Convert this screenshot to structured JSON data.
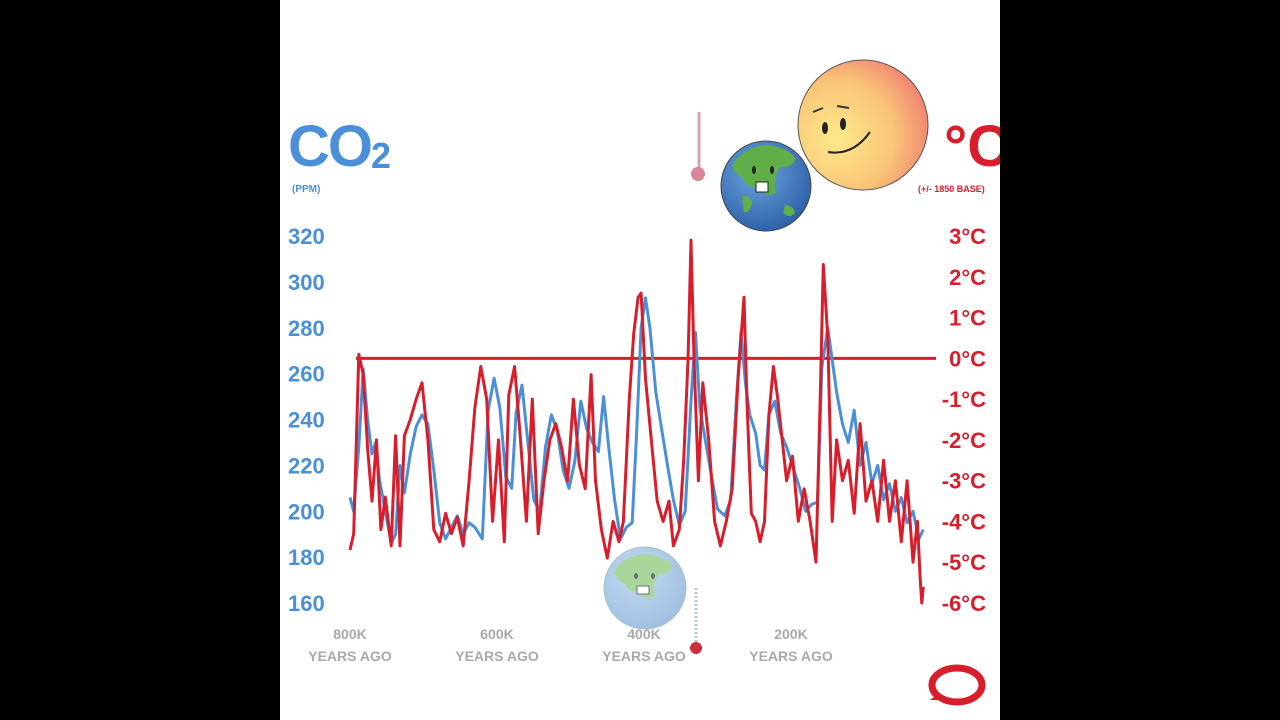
{
  "colors": {
    "co2": "#4a90d9",
    "temp": "#d81e2a",
    "background": "#ffffff",
    "frame": "#000000",
    "x_labels": "#a9a9a9"
  },
  "header": {
    "co2_title": "CO",
    "co2_sub": "2",
    "co2_unit": "(PPM)",
    "temp_title": "°C",
    "temp_unit": "(+/- 1850 BASE)"
  },
  "icons": [
    "thermometer-icon",
    "earth-icon",
    "sun-icon",
    "earth-icon",
    "thermometer-icon",
    "logo-icon"
  ],
  "chart_data": {
    "type": "line",
    "x_unit": "years ago",
    "xlim": [
      800000,
      0
    ],
    "x_ticks": [
      {
        "value": 800000,
        "line1": "800K",
        "line2": "YEARS AGO"
      },
      {
        "value": 600000,
        "line1": "600K",
        "line2": "YEARS AGO"
      },
      {
        "value": 400000,
        "line1": "400K",
        "line2": "YEARS AGO"
      },
      {
        "value": 200000,
        "line1": "200K",
        "line2": "YEARS AGO"
      }
    ],
    "y_left": {
      "label": "CO2 (PPM)",
      "ticks": [
        320,
        300,
        280,
        260,
        240,
        220,
        200,
        180,
        160
      ],
      "ylim": [
        160,
        320
      ]
    },
    "y_right": {
      "label": "°C (+/- 1850 BASE)",
      "ticks": [
        "3°C",
        "2°C",
        "1°C",
        "0°C",
        "-1°C",
        "-2°C",
        "-3°C",
        "-4°C",
        "-5°C",
        "-6°C"
      ],
      "ylim": [
        -6,
        3
      ]
    },
    "reference_line": {
      "value_celsius": 0
    },
    "series": [
      {
        "axis": "left",
        "points": [
          [
            800000,
            206
          ],
          [
            795000,
            200
          ],
          [
            788000,
            228
          ],
          [
            782000,
            262
          ],
          [
            776000,
            240
          ],
          [
            770000,
            225
          ],
          [
            765000,
            230
          ],
          [
            760000,
            214
          ],
          [
            752000,
            200
          ],
          [
            744000,
            186
          ],
          [
            738000,
            190
          ],
          [
            732000,
            220
          ],
          [
            726000,
            208
          ],
          [
            718000,
            225
          ],
          [
            710000,
            237
          ],
          [
            702000,
            242
          ],
          [
            694000,
            238
          ],
          [
            686000,
            218
          ],
          [
            678000,
            195
          ],
          [
            670000,
            188
          ],
          [
            662000,
            193
          ],
          [
            654000,
            198
          ],
          [
            646000,
            190
          ],
          [
            638000,
            195
          ],
          [
            630000,
            193
          ],
          [
            620000,
            188
          ],
          [
            612000,
            244
          ],
          [
            604000,
            258
          ],
          [
            596000,
            245
          ],
          [
            588000,
            215
          ],
          [
            580000,
            210
          ],
          [
            574000,
            243
          ],
          [
            566000,
            255
          ],
          [
            558000,
            230
          ],
          [
            550000,
            205
          ],
          [
            542000,
            200
          ],
          [
            534000,
            228
          ],
          [
            526000,
            242
          ],
          [
            518000,
            235
          ],
          [
            510000,
            218
          ],
          [
            502000,
            210
          ],
          [
            494000,
            222
          ],
          [
            486000,
            248
          ],
          [
            478000,
            236
          ],
          [
            470000,
            230
          ],
          [
            462000,
            226
          ],
          [
            455000,
            250
          ],
          [
            448000,
            228
          ],
          [
            440000,
            205
          ],
          [
            432000,
            188
          ],
          [
            424000,
            193
          ],
          [
            416000,
            195
          ],
          [
            410000,
            234
          ],
          [
            404000,
            280
          ],
          [
            398000,
            293
          ],
          [
            392000,
            280
          ],
          [
            384000,
            252
          ],
          [
            376000,
            236
          ],
          [
            368000,
            220
          ],
          [
            360000,
            205
          ],
          [
            352000,
            194
          ],
          [
            344000,
            200
          ],
          [
            336000,
            248
          ],
          [
            330000,
            278
          ],
          [
            324000,
            245
          ],
          [
            316000,
            230
          ],
          [
            308000,
            215
          ],
          [
            300000,
            201
          ],
          [
            290000,
            198
          ],
          [
            282000,
            205
          ],
          [
            274000,
            250
          ],
          [
            268000,
            278
          ],
          [
            262000,
            256
          ],
          [
            256000,
            242
          ],
          [
            248000,
            234
          ],
          [
            242000,
            220
          ],
          [
            236000,
            218
          ],
          [
            230000,
            242
          ],
          [
            222000,
            248
          ],
          [
            214000,
            234
          ],
          [
            206000,
            228
          ],
          [
            196000,
            218
          ],
          [
            188000,
            210
          ],
          [
            180000,
            200
          ],
          [
            172000,
            203
          ],
          [
            164000,
            204
          ],
          [
            158000,
            263
          ],
          [
            150000,
            280
          ],
          [
            144000,
            266
          ],
          [
            138000,
            252
          ],
          [
            130000,
            238
          ],
          [
            122000,
            230
          ],
          [
            114000,
            244
          ],
          [
            106000,
            220
          ],
          [
            98000,
            230
          ],
          [
            90000,
            212
          ],
          [
            82000,
            220
          ],
          [
            74000,
            205
          ],
          [
            66000,
            212
          ],
          [
            58000,
            200
          ],
          [
            50000,
            206
          ],
          [
            42000,
            195
          ],
          [
            34000,
            200
          ],
          [
            26000,
            188
          ],
          [
            20000,
            192
          ]
        ]
      },
      {
        "axis": "right",
        "points": [
          [
            800000,
            -4.7
          ],
          [
            795000,
            -4.3
          ],
          [
            788000,
            0.1
          ],
          [
            782000,
            -0.4
          ],
          [
            776000,
            -2.2
          ],
          [
            770000,
            -3.5
          ],
          [
            764000,
            -2.0
          ],
          [
            758000,
            -4.2
          ],
          [
            752000,
            -3.4
          ],
          [
            744000,
            -4.6
          ],
          [
            738000,
            -1.9
          ],
          [
            732000,
            -4.6
          ],
          [
            726000,
            -1.9
          ],
          [
            718000,
            -1.5
          ],
          [
            710000,
            -1.0
          ],
          [
            702000,
            -0.6
          ],
          [
            694000,
            -2.0
          ],
          [
            686000,
            -4.2
          ],
          [
            678000,
            -4.5
          ],
          [
            670000,
            -3.8
          ],
          [
            662000,
            -4.3
          ],
          [
            654000,
            -3.9
          ],
          [
            646000,
            -4.6
          ],
          [
            638000,
            -3.0
          ],
          [
            630000,
            -1.2
          ],
          [
            622000,
            -0.2
          ],
          [
            614000,
            -1.0
          ],
          [
            606000,
            -4.0
          ],
          [
            598000,
            -2.0
          ],
          [
            590000,
            -4.5
          ],
          [
            584000,
            -0.9
          ],
          [
            576000,
            -0.2
          ],
          [
            568000,
            -2.0
          ],
          [
            560000,
            -4.0
          ],
          [
            552000,
            -1.0
          ],
          [
            544000,
            -4.3
          ],
          [
            536000,
            -3.0
          ],
          [
            528000,
            -2.0
          ],
          [
            520000,
            -1.6
          ],
          [
            512000,
            -2.2
          ],
          [
            504000,
            -3.0
          ],
          [
            496000,
            -1.0
          ],
          [
            488000,
            -2.6
          ],
          [
            480000,
            -3.2
          ],
          [
            472000,
            -0.4
          ],
          [
            466000,
            -3.0
          ],
          [
            458000,
            -4.2
          ],
          [
            450000,
            -4.9
          ],
          [
            442000,
            -4.0
          ],
          [
            434000,
            -4.5
          ],
          [
            428000,
            -4.0
          ],
          [
            420000,
            -1.0
          ],
          [
            414000,
            0.6
          ],
          [
            408000,
            1.5
          ],
          [
            404000,
            1.6
          ],
          [
            398000,
            -0.5
          ],
          [
            390000,
            -2.0
          ],
          [
            382000,
            -3.5
          ],
          [
            374000,
            -4.0
          ],
          [
            366000,
            -3.5
          ],
          [
            360000,
            -4.6
          ],
          [
            352000,
            -4.2
          ],
          [
            346000,
            -2.5
          ],
          [
            340000,
            0.0
          ],
          [
            336000,
            2.9
          ],
          [
            332000,
            0.0
          ],
          [
            326000,
            -3.0
          ],
          [
            320000,
            -0.6
          ],
          [
            312000,
            -2.0
          ],
          [
            304000,
            -4.0
          ],
          [
            296000,
            -4.6
          ],
          [
            288000,
            -4.0
          ],
          [
            280000,
            -3.2
          ],
          [
            272000,
            -0.5
          ],
          [
            264000,
            1.5
          ],
          [
            260000,
            -1.0
          ],
          [
            254000,
            -3.8
          ],
          [
            248000,
            -4.0
          ],
          [
            242000,
            -4.5
          ],
          [
            236000,
            -4.0
          ],
          [
            230000,
            -1.4
          ],
          [
            224000,
            -0.2
          ],
          [
            218000,
            -1.0
          ],
          [
            212000,
            -2.0
          ],
          [
            206000,
            -3.0
          ],
          [
            198000,
            -2.4
          ],
          [
            190000,
            -4.0
          ],
          [
            182000,
            -3.2
          ],
          [
            174000,
            -4.0
          ],
          [
            166000,
            -5.0
          ],
          [
            160000,
            -0.8
          ],
          [
            156000,
            2.3
          ],
          [
            150000,
            0.5
          ],
          [
            144000,
            -4.0
          ],
          [
            138000,
            -2.0
          ],
          [
            130000,
            -3.0
          ],
          [
            122000,
            -2.5
          ],
          [
            114000,
            -3.8
          ],
          [
            106000,
            -1.6
          ],
          [
            98000,
            -3.5
          ],
          [
            90000,
            -3.0
          ],
          [
            82000,
            -4.0
          ],
          [
            74000,
            -2.5
          ],
          [
            66000,
            -4.0
          ],
          [
            58000,
            -3.0
          ],
          [
            50000,
            -4.5
          ],
          [
            42000,
            -3.0
          ],
          [
            34000,
            -5.0
          ],
          [
            28000,
            -4.0
          ],
          [
            24000,
            -5.5
          ],
          [
            22000,
            -6.0
          ],
          [
            20000,
            -5.6
          ]
        ]
      }
    ]
  }
}
